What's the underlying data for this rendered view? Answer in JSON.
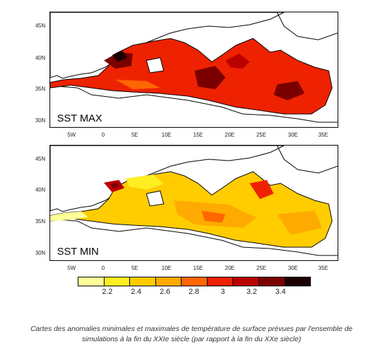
{
  "panels": [
    {
      "label": "SST MAX",
      "y_ticks": [
        "45N",
        "40N",
        "35N",
        "30N"
      ],
      "x_ticks": [
        "5W",
        "0",
        "5E",
        "10E",
        "15E",
        "20E",
        "25E",
        "30E",
        "35E"
      ]
    },
    {
      "label": "SST MIN",
      "y_ticks": [
        "45N",
        "40N",
        "35N",
        "30N"
      ],
      "x_ticks": [
        "5W",
        "0",
        "5E",
        "10E",
        "15E",
        "20E",
        "25E",
        "30E",
        "35E"
      ]
    }
  ],
  "colorbar": {
    "labels": [
      "2.2",
      "2.4",
      "2.6",
      "2.8",
      "3",
      "3.2",
      "3.4"
    ],
    "colors": [
      "#ffff99",
      "#ffee22",
      "#ffcc00",
      "#ffaa00",
      "#ff6600",
      "#ee2200",
      "#bb0000",
      "#7a0000",
      "#1a0000"
    ]
  },
  "caption": {
    "line1": "Cartes des anomalies minimales et maximales de température de surface prévues par l'ensemble de",
    "line2": "simulations à la fin du XXIe siècle (par rapport à la fin du XXe siècle)"
  }
}
